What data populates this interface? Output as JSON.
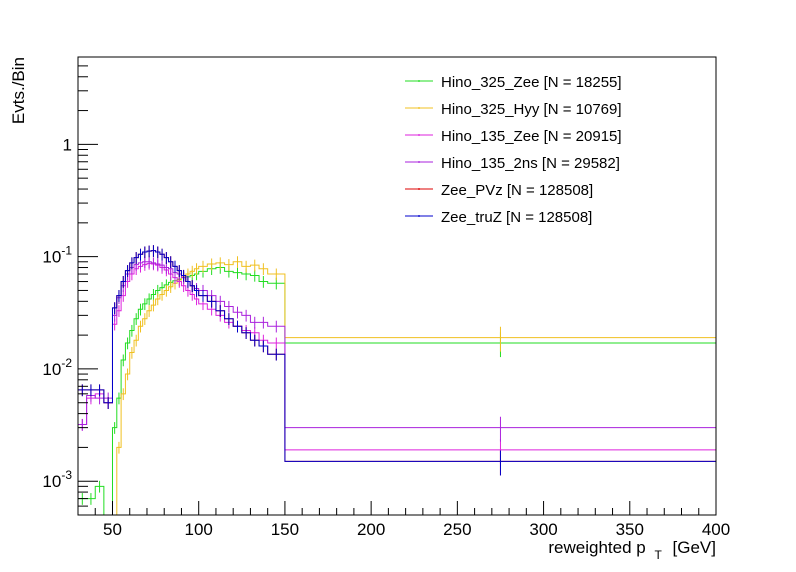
{
  "chart_data": {
    "type": "histogram",
    "title": "",
    "xlabel": "reweighted p",
    "xlabel_sub": "T",
    "xlabel_unit": "[GeV]",
    "ylabel": "Evts./Bin",
    "xlim": [
      30,
      400
    ],
    "ylim": [
      0.0005,
      6
    ],
    "yscale": "log",
    "grid": false,
    "legend_position": "top-right",
    "x_ticks": [
      50,
      100,
      150,
      200,
      250,
      300,
      350,
      400
    ],
    "y_ticks": [
      {
        "value": 0.001,
        "base": "10",
        "exp": "-3"
      },
      {
        "value": 0.01,
        "base": "10",
        "exp": "-2"
      },
      {
        "value": 0.1,
        "base": "10",
        "exp": "-1"
      },
      {
        "value": 1,
        "base": "1",
        "exp": ""
      }
    ],
    "bin_edges": [
      30,
      35,
      40,
      45,
      50,
      52.5,
      55,
      57.5,
      60,
      62.5,
      65,
      67.5,
      70,
      72.5,
      75,
      77.5,
      80,
      82.5,
      85,
      87.5,
      90,
      92.5,
      95,
      97.5,
      100,
      105,
      110,
      115,
      120,
      125,
      130,
      135,
      140,
      150,
      400
    ],
    "series": [
      {
        "name": "Hino_325_Zee [N = 18255]",
        "color": "#22dd22",
        "values": [
          0.0007,
          0.0007,
          0.0009,
          0.0005,
          0.003,
          0.0055,
          0.012,
          0.017,
          0.022,
          0.028,
          0.034,
          0.038,
          0.042,
          0.046,
          0.05,
          0.053,
          0.056,
          0.059,
          0.061,
          0.063,
          0.065,
          0.066,
          0.068,
          0.07,
          0.074,
          0.078,
          0.08,
          0.074,
          0.072,
          0.07,
          0.068,
          0.06,
          0.058,
          0.017
        ]
      },
      {
        "name": "Hino_325_Hyy [N = 10769]",
        "color": "#f0c020",
        "values": [
          0.0005,
          0.0005,
          0.0005,
          0.0005,
          0.0005,
          0.002,
          0.006,
          0.009,
          0.014,
          0.018,
          0.024,
          0.028,
          0.033,
          0.037,
          0.042,
          0.046,
          0.05,
          0.054,
          0.058,
          0.062,
          0.066,
          0.07,
          0.074,
          0.078,
          0.082,
          0.086,
          0.088,
          0.085,
          0.09,
          0.082,
          0.084,
          0.078,
          0.07,
          0.019
        ]
      },
      {
        "name": "Hino_135_Zee [N = 20915]",
        "color": "#dd22dd",
        "values": [
          0.0032,
          0.0055,
          0.006,
          0.005,
          0.025,
          0.033,
          0.045,
          0.06,
          0.07,
          0.078,
          0.082,
          0.085,
          0.087,
          0.086,
          0.084,
          0.08,
          0.076,
          0.07,
          0.065,
          0.06,
          0.055,
          0.05,
          0.046,
          0.042,
          0.038,
          0.034,
          0.03,
          0.026,
          0.024,
          0.022,
          0.021,
          0.018,
          0.017,
          0.0019
        ]
      },
      {
        "name": "Hino_135_2ns [N = 29582]",
        "color": "#aa22dd",
        "values": [
          0.0032,
          0.0058,
          0.0055,
          0.0055,
          0.03,
          0.043,
          0.055,
          0.07,
          0.08,
          0.085,
          0.088,
          0.09,
          0.09,
          0.088,
          0.086,
          0.084,
          0.08,
          0.078,
          0.072,
          0.07,
          0.065,
          0.06,
          0.055,
          0.052,
          0.05,
          0.045,
          0.04,
          0.036,
          0.032,
          0.03,
          0.026,
          0.026,
          0.024,
          0.003
        ]
      },
      {
        "name": "Zee_PVz [N = 128508]",
        "color": "#dd0000",
        "values": [
          0.0065,
          0.0065,
          0.0065,
          0.005,
          0.035,
          0.045,
          0.06,
          0.075,
          0.088,
          0.098,
          0.105,
          0.11,
          0.112,
          0.113,
          0.11,
          0.105,
          0.098,
          0.09,
          0.082,
          0.075,
          0.068,
          0.06,
          0.055,
          0.05,
          0.045,
          0.04,
          0.033,
          0.028,
          0.024,
          0.021,
          0.018,
          0.016,
          0.0135,
          0.0015
        ]
      },
      {
        "name": "Zee_truZ [N = 128508]",
        "color": "#0000cc",
        "values": [
          0.0065,
          0.0065,
          0.0065,
          0.005,
          0.035,
          0.045,
          0.06,
          0.075,
          0.088,
          0.098,
          0.105,
          0.11,
          0.112,
          0.113,
          0.11,
          0.105,
          0.098,
          0.09,
          0.082,
          0.075,
          0.068,
          0.06,
          0.055,
          0.05,
          0.045,
          0.04,
          0.033,
          0.028,
          0.024,
          0.021,
          0.018,
          0.016,
          0.0135,
          0.0015
        ]
      }
    ]
  }
}
